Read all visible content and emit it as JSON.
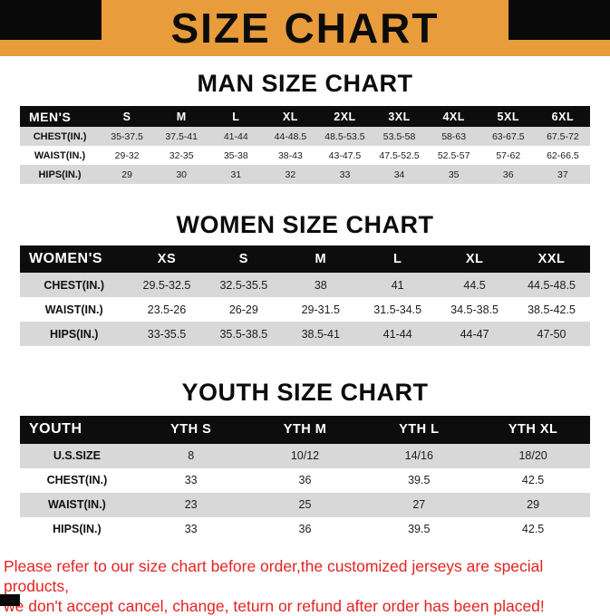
{
  "banner": {
    "title": "SIZE CHART"
  },
  "sections": [
    {
      "heading": "MAN SIZE CHART",
      "table": {
        "header": [
          "MEN'S",
          "S",
          "M",
          "L",
          "XL",
          "2XL",
          "3XL",
          "4XL",
          "5XL",
          "6XL"
        ],
        "rows": [
          [
            "CHEST(IN.)",
            "35-37.5",
            "37.5-41",
            "41-44",
            "44-48.5",
            "48.5-53.5",
            "53.5-58",
            "58-63",
            "63-67.5",
            "67.5-72"
          ],
          [
            "WAIST(IN.)",
            "29-32",
            "32-35",
            "35-38",
            "38-43",
            "43-47.5",
            "47.5-52.5",
            "52.5-57",
            "57-62",
            "62-66.5"
          ],
          [
            "HIPS(IN.)",
            "29",
            "30",
            "31",
            "32",
            "33",
            "34",
            "35",
            "36",
            "37"
          ]
        ]
      }
    },
    {
      "heading": "WOMEN SIZE CHART",
      "table": {
        "header": [
          "WOMEN'S",
          "XS",
          "S",
          "M",
          "L",
          "XL",
          "XXL"
        ],
        "rows": [
          [
            "CHEST(IN.)",
            "29.5-32.5",
            "32.5-35.5",
            "38",
            "41",
            "44.5",
            "44.5-48.5"
          ],
          [
            "WAIST(IN.)",
            "23.5-26",
            "26-29",
            "29-31.5",
            "31.5-34.5",
            "34.5-38.5",
            "38.5-42.5"
          ],
          [
            "HIPS(IN.)",
            "33-35.5",
            "35.5-38.5",
            "38.5-41",
            "41-44",
            "44-47",
            "47-50"
          ]
        ]
      }
    },
    {
      "heading": "YOUTH SIZE CHART",
      "table": {
        "header": [
          "YOUTH",
          "YTH S",
          "YTH M",
          "YTH L",
          "YTH XL"
        ],
        "rows": [
          [
            "U.S.SIZE",
            "8",
            "10/12",
            "14/16",
            "18/20"
          ],
          [
            "CHEST(IN.)",
            "33",
            "36",
            "39.5",
            "42.5"
          ],
          [
            "WAIST(IN.)",
            "23",
            "25",
            "27",
            "29"
          ],
          [
            "HIPS(IN.)",
            "33",
            "36",
            "39.5",
            "42.5"
          ]
        ]
      }
    }
  ],
  "footer": {
    "lines": [
      "Please refer to our size chart before order,the customized jerseys are special products,",
      "we don't accept cancel, change, teturn or refund after order has been placed!"
    ]
  },
  "colors": {
    "banner_bg": "#E89C3C",
    "header_bg": "#0D0D0D",
    "row_alt": "#D8D8D8",
    "footer_text": "#E42320"
  }
}
